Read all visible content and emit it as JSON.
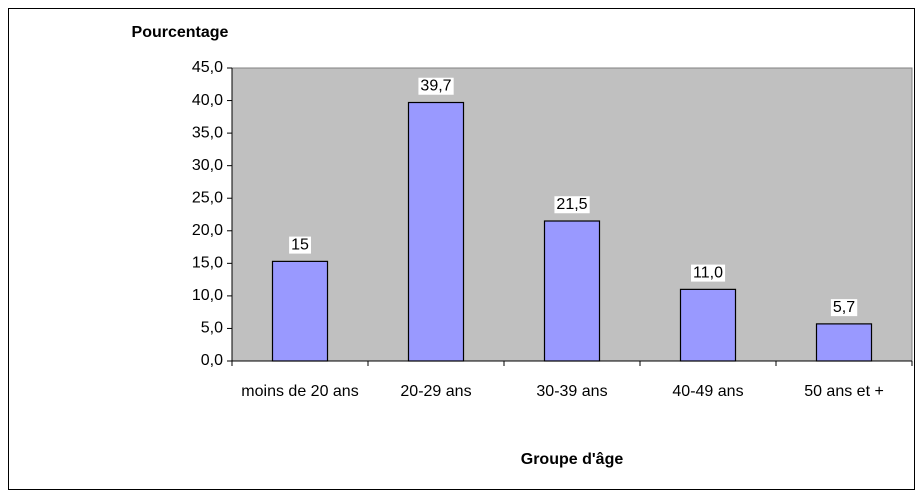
{
  "chart_data": {
    "type": "bar",
    "y_label": "Pourcentage",
    "x_label": "Groupe d'âge",
    "categories": [
      "moins de 20 ans",
      "20-29 ans",
      "30-39 ans",
      "40-49 ans",
      "50 ans et +"
    ],
    "values": [
      15.3,
      39.7,
      21.5,
      11.0,
      5.7
    ],
    "value_labels": [
      "15",
      "39,7",
      "21,5",
      "11,0",
      "5,7"
    ],
    "color": "#9999ff",
    "ylim": [
      0,
      45
    ],
    "yticks": [
      {
        "value": 0,
        "label": "0,0"
      },
      {
        "value": 5,
        "label": "5,0"
      },
      {
        "value": 10,
        "label": "10,0"
      },
      {
        "value": 15,
        "label": "15,0"
      },
      {
        "value": 20,
        "label": "20,0"
      },
      {
        "value": 25,
        "label": "25,0"
      },
      {
        "value": 30,
        "label": "30,0"
      },
      {
        "value": 35,
        "label": "35,0"
      },
      {
        "value": 40,
        "label": "40,0"
      },
      {
        "value": 45,
        "label": "45,0"
      }
    ],
    "plot_background": "#c0c0c0"
  }
}
